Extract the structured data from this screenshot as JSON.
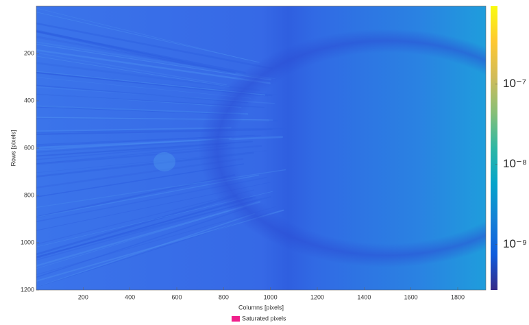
{
  "chart_data": {
    "type": "heatmap",
    "xlabel": "Columns [pixels]",
    "ylabel": "Rows [pixels]",
    "xlim": [
      0,
      1920
    ],
    "ylim": [
      0,
      1200
    ],
    "y_reversed": true,
    "xticks": [
      200,
      400,
      600,
      800,
      1000,
      1200,
      1400,
      1600,
      1800
    ],
    "yticks": [
      200,
      400,
      600,
      800,
      1000,
      1200
    ],
    "colormap": "parula",
    "color_scale": "log",
    "clim": [
      2.7e-10,
      9.4e-07
    ],
    "cticks": [
      {
        "value": 1e-09,
        "label": "10⁻⁹"
      },
      {
        "value": 1e-08,
        "label": "10⁻⁸"
      },
      {
        "value": 1e-07,
        "label": "10⁻⁷"
      }
    ],
    "legend_items": [
      {
        "name": "Saturated pixels",
        "color": "#f0208c"
      }
    ]
  }
}
